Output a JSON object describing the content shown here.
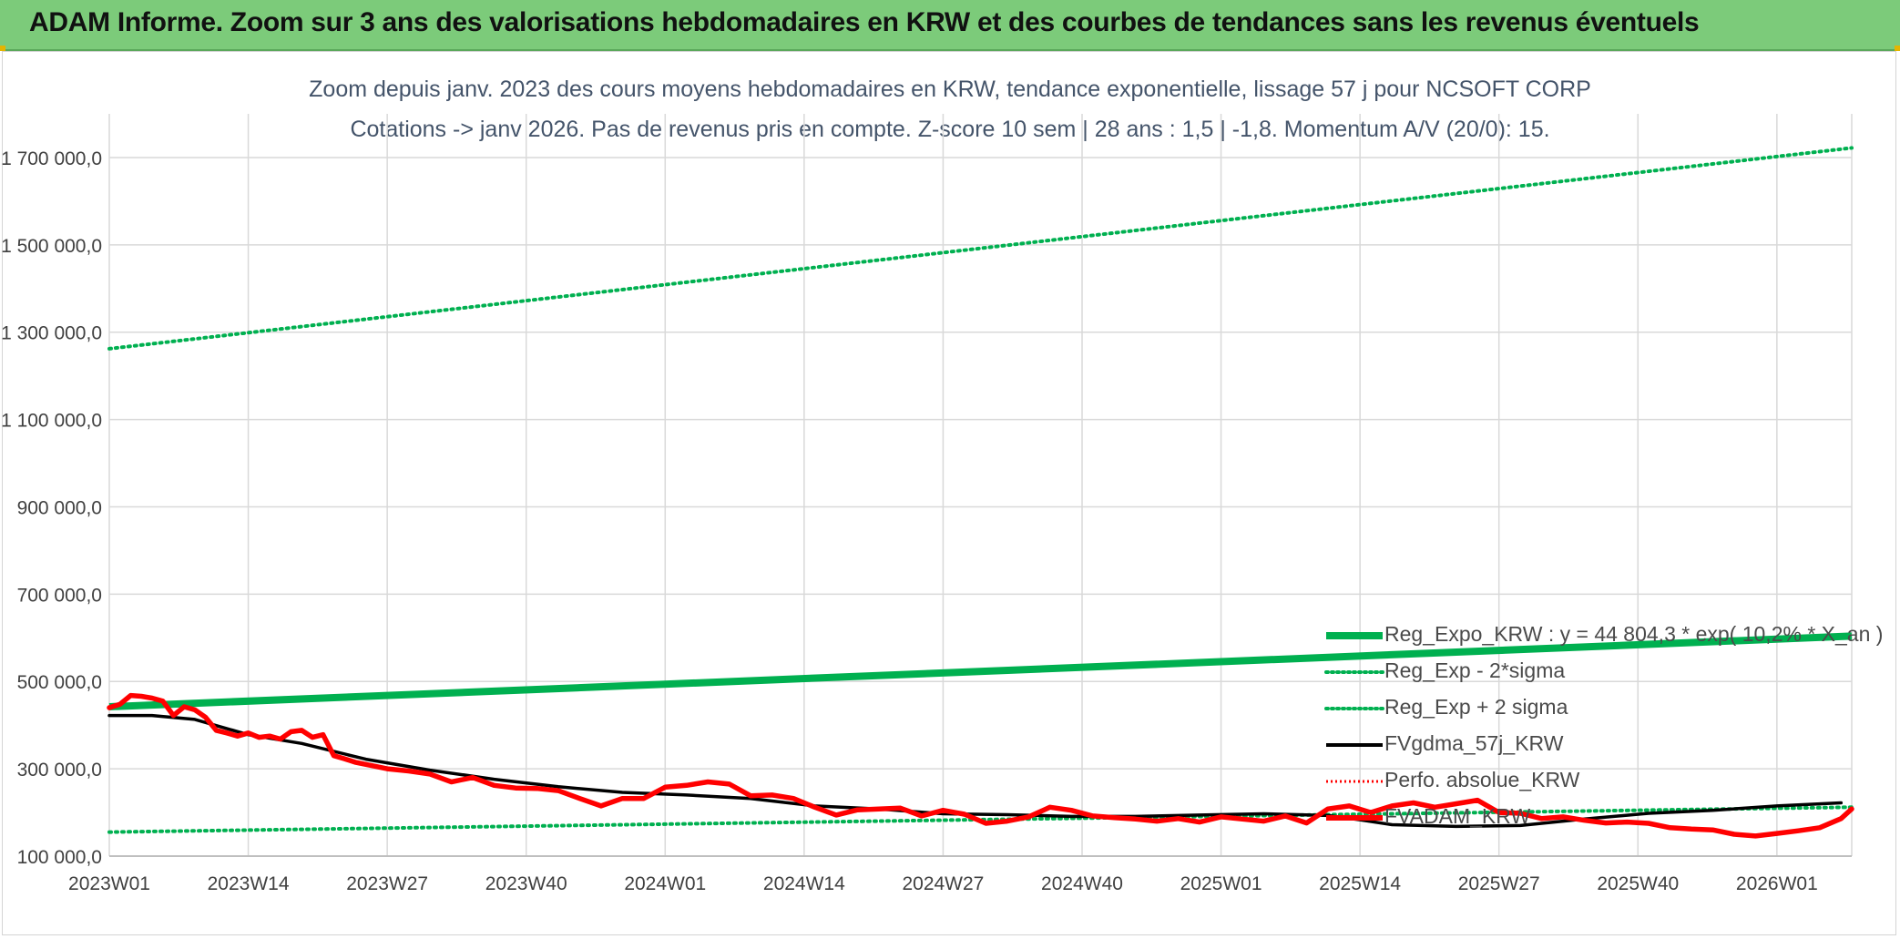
{
  "header": {
    "title": "ADAM Informe. Zoom sur 3 ans des valorisations hebdomadaires en KRW et des courbes de tendances sans les revenus éventuels"
  },
  "chart_data": {
    "type": "line",
    "title": "Zoom depuis janv. 2023 des cours moyens hebdomadaires en KRW, tendance exponentielle, lissage 57 j pour NCSOFT CORP",
    "subtitle": "Cotations -> janv 2026. Pas de revenus pris en compte. Z-score 10 sem | 28 ans : 1,5 | -1,8. Momentum A/V (20/0): 15.",
    "xlabel": "",
    "ylabel": "",
    "x_ticks": [
      "2023W01",
      "2023W14",
      "2023W27",
      "2023W40",
      "2024W01",
      "2024W14",
      "2024W27",
      "2024W40",
      "2025W01",
      "2025W14",
      "2025W27",
      "2025W40",
      "2026W01"
    ],
    "x_range_weeks": [
      0,
      163
    ],
    "ylim": [
      100000,
      1800000
    ],
    "y_ticks": [
      100000,
      300000,
      500000,
      700000,
      900000,
      1100000,
      1300000,
      1500000,
      1700000
    ],
    "y_tick_labels": [
      "100 000,0",
      "300 000,0",
      "500 000,0",
      "700 000,0",
      "900 000,0",
      "1 100 000,0",
      "1 300 000,0",
      "1 500 000,0",
      "1 700 000,0"
    ],
    "grid": true,
    "legend_position": "bottom-right",
    "colors": {
      "trend": "#00b050",
      "fv_smooth": "#000000",
      "fv_adam": "#ff0000",
      "perfo": "#ff0000",
      "grid": "#d9d9d9",
      "axis_text": "#404040"
    },
    "series": [
      {
        "name": "Reg_Expo_KRW : y = 44 804,3 * exp( 10,2% * X_an )",
        "style": "thick",
        "x": [
          0,
          163
        ],
        "values": [
          442000,
          604000
        ]
      },
      {
        "name": "Reg_Exp - 2*sigma",
        "style": "dotted",
        "x": [
          0,
          163
        ],
        "values": [
          155000,
          212000
        ]
      },
      {
        "name": "Reg_Exp + 2 sigma",
        "style": "dotted",
        "x": [
          0,
          163
        ],
        "values": [
          1262000,
          1722000
        ]
      },
      {
        "name": "FVgdma_57j_KRW",
        "style": "solid",
        "x": [
          0,
          4,
          8,
          13,
          18,
          24,
          30,
          36,
          42,
          48,
          54,
          60,
          66,
          72,
          78,
          84,
          90,
          96,
          102,
          108,
          114,
          117,
          120,
          126,
          132,
          138,
          144,
          150,
          156,
          162
        ],
        "values": [
          422000,
          422000,
          413000,
          378000,
          358000,
          322000,
          297000,
          276000,
          259000,
          246000,
          240000,
          232000,
          215000,
          208000,
          197000,
          195000,
          191000,
          191000,
          194000,
          197000,
          193000,
          183000,
          172000,
          168000,
          170000,
          185000,
          198000,
          205000,
          215000,
          222000
        ]
      },
      {
        "name": "Perfo. absolue_KRW",
        "style": "dotted",
        "x": [],
        "values": []
      },
      {
        "name": "FVADAM_KRW",
        "style": "thick-solid",
        "x": [
          0,
          1,
          2,
          3,
          4,
          5,
          6,
          7,
          8,
          9,
          10,
          11,
          12,
          13,
          14,
          15,
          16,
          17,
          18,
          19,
          20,
          21,
          22,
          23,
          24,
          26,
          28,
          30,
          32,
          34,
          36,
          38,
          40,
          42,
          44,
          46,
          48,
          50,
          52,
          54,
          56,
          58,
          60,
          62,
          64,
          66,
          68,
          70,
          72,
          74,
          76,
          78,
          80,
          82,
          84,
          86,
          88,
          90,
          92,
          94,
          96,
          98,
          100,
          102,
          104,
          106,
          108,
          110,
          112,
          114,
          116,
          118,
          120,
          122,
          124,
          126,
          128,
          130,
          132,
          134,
          136,
          138,
          140,
          142,
          144,
          146,
          148,
          150,
          152,
          154,
          156,
          158,
          160,
          162,
          163
        ],
        "values": [
          440000,
          448000,
          468000,
          466000,
          462000,
          455000,
          422000,
          442000,
          435000,
          418000,
          388000,
          382000,
          375000,
          382000,
          372000,
          375000,
          368000,
          385000,
          388000,
          372000,
          378000,
          330000,
          323000,
          315000,
          310000,
          300000,
          295000,
          288000,
          270000,
          280000,
          262000,
          256000,
          255000,
          250000,
          232000,
          215000,
          232000,
          232000,
          258000,
          262000,
          270000,
          265000,
          238000,
          240000,
          232000,
          212000,
          194000,
          206000,
          208000,
          210000,
          192000,
          205000,
          196000,
          175000,
          180000,
          190000,
          212000,
          205000,
          192000,
          188000,
          185000,
          180000,
          186000,
          178000,
          190000,
          185000,
          180000,
          192000,
          176000,
          208000,
          215000,
          200000,
          215000,
          222000,
          212000,
          220000,
          228000,
          200000,
          198000,
          186000,
          190000,
          182000,
          176000,
          178000,
          175000,
          165000,
          162000,
          160000,
          150000,
          146000,
          152000,
          158000,
          165000,
          186000,
          208000
        ]
      }
    ]
  },
  "legend": {
    "items": [
      {
        "label": "Reg_Expo_KRW : y = 44 804,3 * exp( 10,2% * X_an )"
      },
      {
        "label": "Reg_Exp - 2*sigma"
      },
      {
        "label": "Reg_Exp + 2 sigma"
      },
      {
        "label": "FVgdma_57j_KRW"
      },
      {
        "label": "Perfo. absolue_KRW"
      },
      {
        "label": "FVADAM_KRW"
      }
    ]
  }
}
